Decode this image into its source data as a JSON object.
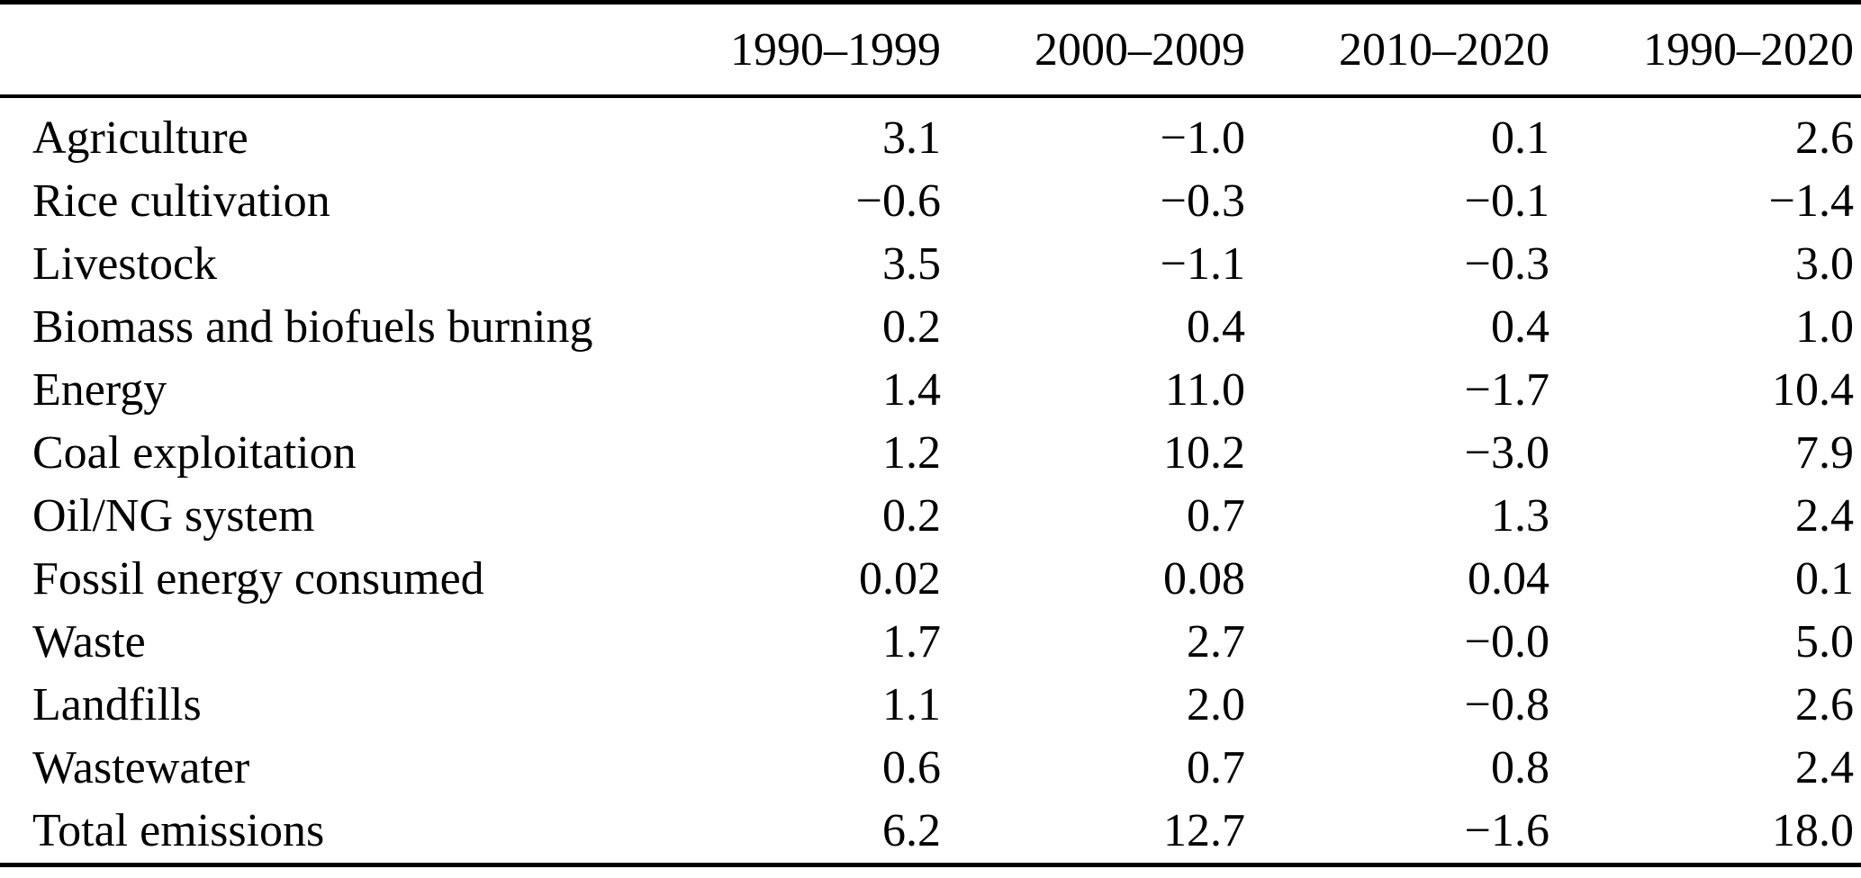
{
  "table": {
    "corner_label": "",
    "columns": [
      "1990–1999",
      "2000–2009",
      "2010–2020",
      "1990–2020"
    ],
    "rows": [
      {
        "label": "Agriculture",
        "values": [
          "3.1",
          "−1.0",
          "0.1",
          "2.6"
        ]
      },
      {
        "label": "Rice cultivation",
        "values": [
          "−0.6",
          "−0.3",
          "−0.1",
          "−1.4"
        ]
      },
      {
        "label": "Livestock",
        "values": [
          "3.5",
          "−1.1",
          "−0.3",
          "3.0"
        ]
      },
      {
        "label": "Biomass and biofuels burning",
        "values": [
          "0.2",
          "0.4",
          "0.4",
          "1.0"
        ]
      },
      {
        "label": "Energy",
        "values": [
          "1.4",
          "11.0",
          "−1.7",
          "10.4"
        ]
      },
      {
        "label": "Coal exploitation",
        "values": [
          "1.2",
          "10.2",
          "−3.0",
          "7.9"
        ]
      },
      {
        "label": "Oil/NG system",
        "values": [
          "0.2",
          "0.7",
          "1.3",
          "2.4"
        ]
      },
      {
        "label": "Fossil energy consumed",
        "values": [
          "0.02",
          "0.08",
          "0.04",
          "0.1"
        ]
      },
      {
        "label": "Waste",
        "values": [
          "1.7",
          "2.7",
          "−0.0",
          "5.0"
        ]
      },
      {
        "label": "Landfills",
        "values": [
          "1.1",
          "2.0",
          "−0.8",
          "2.6"
        ]
      },
      {
        "label": "Wastewater",
        "values": [
          "0.6",
          "0.7",
          "0.8",
          "2.4"
        ]
      },
      {
        "label": "Total emissions",
        "values": [
          "6.2",
          "12.7",
          "−1.6",
          "18.0"
        ]
      }
    ]
  },
  "chart_data": {
    "type": "table",
    "columns": [
      "1990–1999",
      "2000–2009",
      "2010–2020",
      "1990–2020"
    ],
    "row_labels": [
      "Agriculture",
      "Rice cultivation",
      "Livestock",
      "Biomass and biofuels burning",
      "Energy",
      "Coal exploitation",
      "Oil/NG system",
      "Fossil energy consumed",
      "Waste",
      "Landfills",
      "Wastewater",
      "Total emissions"
    ],
    "values": [
      [
        3.1,
        -1.0,
        0.1,
        2.6
      ],
      [
        -0.6,
        -0.3,
        -0.1,
        -1.4
      ],
      [
        3.5,
        -1.1,
        -0.3,
        3.0
      ],
      [
        0.2,
        0.4,
        0.4,
        1.0
      ],
      [
        1.4,
        11.0,
        -1.7,
        10.4
      ],
      [
        1.2,
        10.2,
        -3.0,
        7.9
      ],
      [
        0.2,
        0.7,
        1.3,
        2.4
      ],
      [
        0.02,
        0.08,
        0.04,
        0.1
      ],
      [
        1.7,
        2.7,
        -0.0,
        5.0
      ],
      [
        1.1,
        2.0,
        -0.8,
        2.6
      ],
      [
        0.6,
        0.7,
        0.8,
        2.4
      ],
      [
        6.2,
        12.7,
        -1.6,
        18.0
      ]
    ]
  },
  "colors": {
    "text": "#000000",
    "background": "#ffffff",
    "rule": "#000000"
  }
}
